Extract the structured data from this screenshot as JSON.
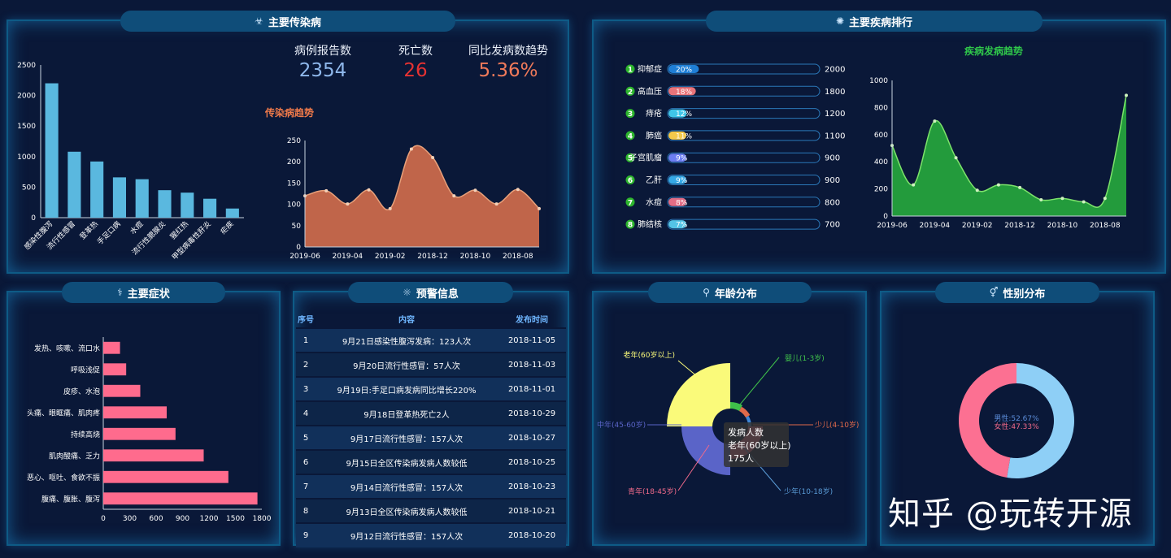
{
  "panels": {
    "infectious": {
      "title": "主要传染病",
      "icon": "☣"
    },
    "ranking": {
      "title": "主要疾病排行",
      "icon": "✺"
    },
    "symptoms": {
      "title": "主要症状",
      "icon": "⚕"
    },
    "warning": {
      "title": "预警信息",
      "icon": "☼"
    },
    "age": {
      "title": "年龄分布",
      "icon": "⚲"
    },
    "gender": {
      "title": "性别分布",
      "icon": "⚥"
    }
  },
  "stats": {
    "reports_label": "病例报告数",
    "reports_value": "2354",
    "deaths_label": "死亡数",
    "deaths_value": "26",
    "trend_label": "同比发病数趋势",
    "trend_value": "5.36%"
  },
  "colors": {
    "blue_bar": "#5ab8df",
    "orange_area": "#c0654a",
    "green_area": "#239b3c",
    "pink_bar": "#ff6b8d",
    "pie_blue": "#8ecff6",
    "pie_pink": "#fc7092"
  },
  "ranking": [
    {
      "rank": "1",
      "name": "抑郁症",
      "pct": "20%",
      "count": "2000",
      "color": "#1f7fd6",
      "fill": 0.2
    },
    {
      "rank": "2",
      "name": "高血压",
      "pct": "18%",
      "count": "1800",
      "color": "#e9747a",
      "fill": 0.18
    },
    {
      "rank": "3",
      "name": "痔疮",
      "pct": "12%",
      "count": "1200",
      "color": "#3fc6e8",
      "fill": 0.12
    },
    {
      "rank": "4",
      "name": "肺癌",
      "pct": "11%",
      "count": "1100",
      "color": "#f4c94b",
      "fill": 0.11
    },
    {
      "rank": "5",
      "name": "子宫肌瘤",
      "pct": "9%",
      "count": "900",
      "color": "#6d7ef2",
      "fill": 0.09
    },
    {
      "rank": "6",
      "name": "乙肝",
      "pct": "9%",
      "count": "900",
      "color": "#36a9e6",
      "fill": 0.09
    },
    {
      "rank": "7",
      "name": "水痘",
      "pct": "8%",
      "count": "800",
      "color": "#e26d86",
      "fill": 0.08
    },
    {
      "rank": "8",
      "name": "肺结核",
      "pct": "7%",
      "count": "700",
      "color": "#54c4e6",
      "fill": 0.07
    }
  ],
  "warning": {
    "headers": [
      "序号",
      "内容",
      "发布时间"
    ],
    "rows": [
      [
        "1",
        "9月21日感染性腹泻发病：123人次",
        "2018-11-05"
      ],
      [
        "2",
        "9月20日流行性感冒：57人次",
        "2018-11-03"
      ],
      [
        "3",
        "9月19日:手足口病发病同比增长220%",
        "2018-11-01"
      ],
      [
        "4",
        "9月18日登革热死亡2人",
        "2018-10-29"
      ],
      [
        "5",
        "9月17日流行性感冒：157人次",
        "2018-10-27"
      ],
      [
        "6",
        "9月15日全区传染病发病人数较低",
        "2018-10-25"
      ],
      [
        "7",
        "9月14日流行性感冒：157人次",
        "2018-10-23"
      ],
      [
        "8",
        "9月13日全区传染病发病人数较低",
        "2018-10-21"
      ],
      [
        "9",
        "9月12日流行性感冒：157人次",
        "2018-10-20"
      ]
    ]
  },
  "age": {
    "labels": [
      "老年(60岁以上)",
      "婴儿(1-3岁)",
      "中年(45-60岁)",
      "少儿(4-10岁)",
      "青年(18-45岁)",
      "少年(10-18岁)"
    ],
    "tooltip": [
      "发病人数",
      "老年(60岁以上)",
      "175人"
    ]
  },
  "gender": {
    "male": "男性:52.67%",
    "female": "女性:47.33%",
    "male_pct": 52.67,
    "female_pct": 47.33
  },
  "watermark": "知乎 @玩转开源",
  "chart_data": [
    {
      "type": "bar",
      "categories": [
        "感染性腹泻",
        "流行性感冒",
        "登革热",
        "手足口病",
        "水痘",
        "流行性腮腺炎",
        "猩红热",
        "甲型病毒性肝炎",
        "疟疾"
      ],
      "values": [
        2200,
        1080,
        920,
        660,
        630,
        450,
        410,
        310,
        150
      ],
      "ylim": [
        0,
        2500
      ],
      "yticks": [
        "0",
        "500",
        "1000",
        "1500",
        "2000",
        "2500"
      ]
    },
    {
      "type": "area",
      "title": "传染病趋势",
      "xticks": [
        "2019-06",
        "2019-04",
        "2019-02",
        "2018-12",
        "2018-10",
        "2018-08"
      ],
      "values": [
        120,
        132,
        101,
        134,
        90,
        230,
        210,
        120,
        133,
        101,
        135,
        90
      ],
      "ylim": [
        0,
        250
      ],
      "yticks": [
        "0",
        "50",
        "100",
        "150",
        "200",
        "250"
      ]
    },
    {
      "type": "area",
      "title": "疾病发病趋势",
      "xticks": [
        "2019-06",
        "2019-04",
        "2019-02",
        "2018-12",
        "2018-10",
        "2018-08"
      ],
      "values": [
        520,
        230,
        700,
        430,
        190,
        230,
        210,
        120,
        130,
        105,
        130,
        890
      ],
      "ylim": [
        0,
        1000
      ],
      "yticks": [
        "0",
        "200",
        "400",
        "600",
        "800",
        "1000"
      ]
    },
    {
      "type": "bar",
      "orientation": "horizontal",
      "categories": [
        "腹痛、腹胀、腹泻",
        "恶心、呕吐、食欲不振",
        "肌肉酸痛、乏力",
        "持续高烧",
        "头痛、眼眶痛、肌肉疼",
        "皮疹、水泡",
        "呼吸浅促",
        "发热、咳嗽、流口水"
      ],
      "values": [
        1750,
        1420,
        1140,
        820,
        720,
        420,
        260,
        190
      ],
      "xlim": [
        0,
        1800
      ],
      "xticks": [
        "0",
        "300",
        "600",
        "900",
        "1200",
        "1500",
        "1800"
      ]
    },
    {
      "type": "pie",
      "labels": [
        "老年(60岁以上)",
        "婴儿(1-3岁)",
        "少儿(4-10岁)",
        "少年(10-18岁)",
        "青年(18-45岁)",
        "中年(45-60岁)"
      ],
      "values": [
        175,
        30,
        25,
        20,
        45,
        95
      ]
    },
    {
      "type": "pie",
      "labels": [
        "男性",
        "女性"
      ],
      "values": [
        52.67,
        47.33
      ]
    }
  ]
}
